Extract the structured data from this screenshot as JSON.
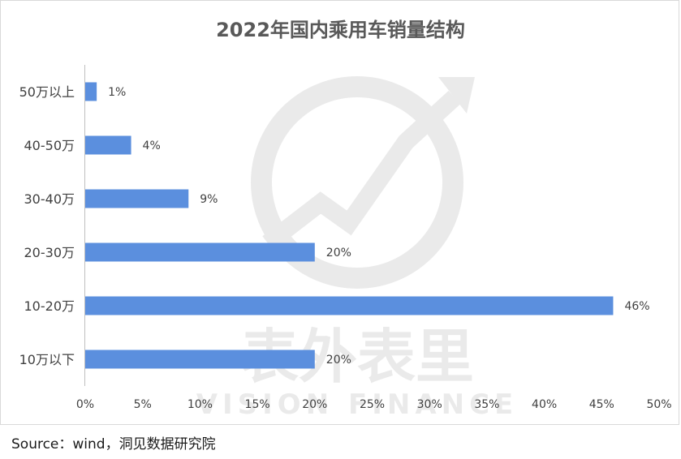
{
  "chart_data": {
    "type": "bar",
    "orientation": "horizontal",
    "title": "2022年国内乘用车销量结构",
    "categories": [
      "50万以上",
      "40-50万",
      "30-40万",
      "20-30万",
      "10-20万",
      "10万以下"
    ],
    "values": [
      1,
      4,
      9,
      20,
      46,
      20
    ],
    "data_labels": [
      "1%",
      "4%",
      "9%",
      "20%",
      "46%",
      "20%"
    ],
    "xticks": [
      "0%",
      "5%",
      "10%",
      "15%",
      "20%",
      "25%",
      "30%",
      "35%",
      "40%",
      "45%",
      "50%"
    ],
    "xlim": [
      0,
      50
    ],
    "grid": false,
    "bar_color": "#5b8fde"
  },
  "watermark": {
    "text": "表外表里",
    "subtext": "VISION FINANCE"
  },
  "source": "Source：wind，洞见数据研究院"
}
